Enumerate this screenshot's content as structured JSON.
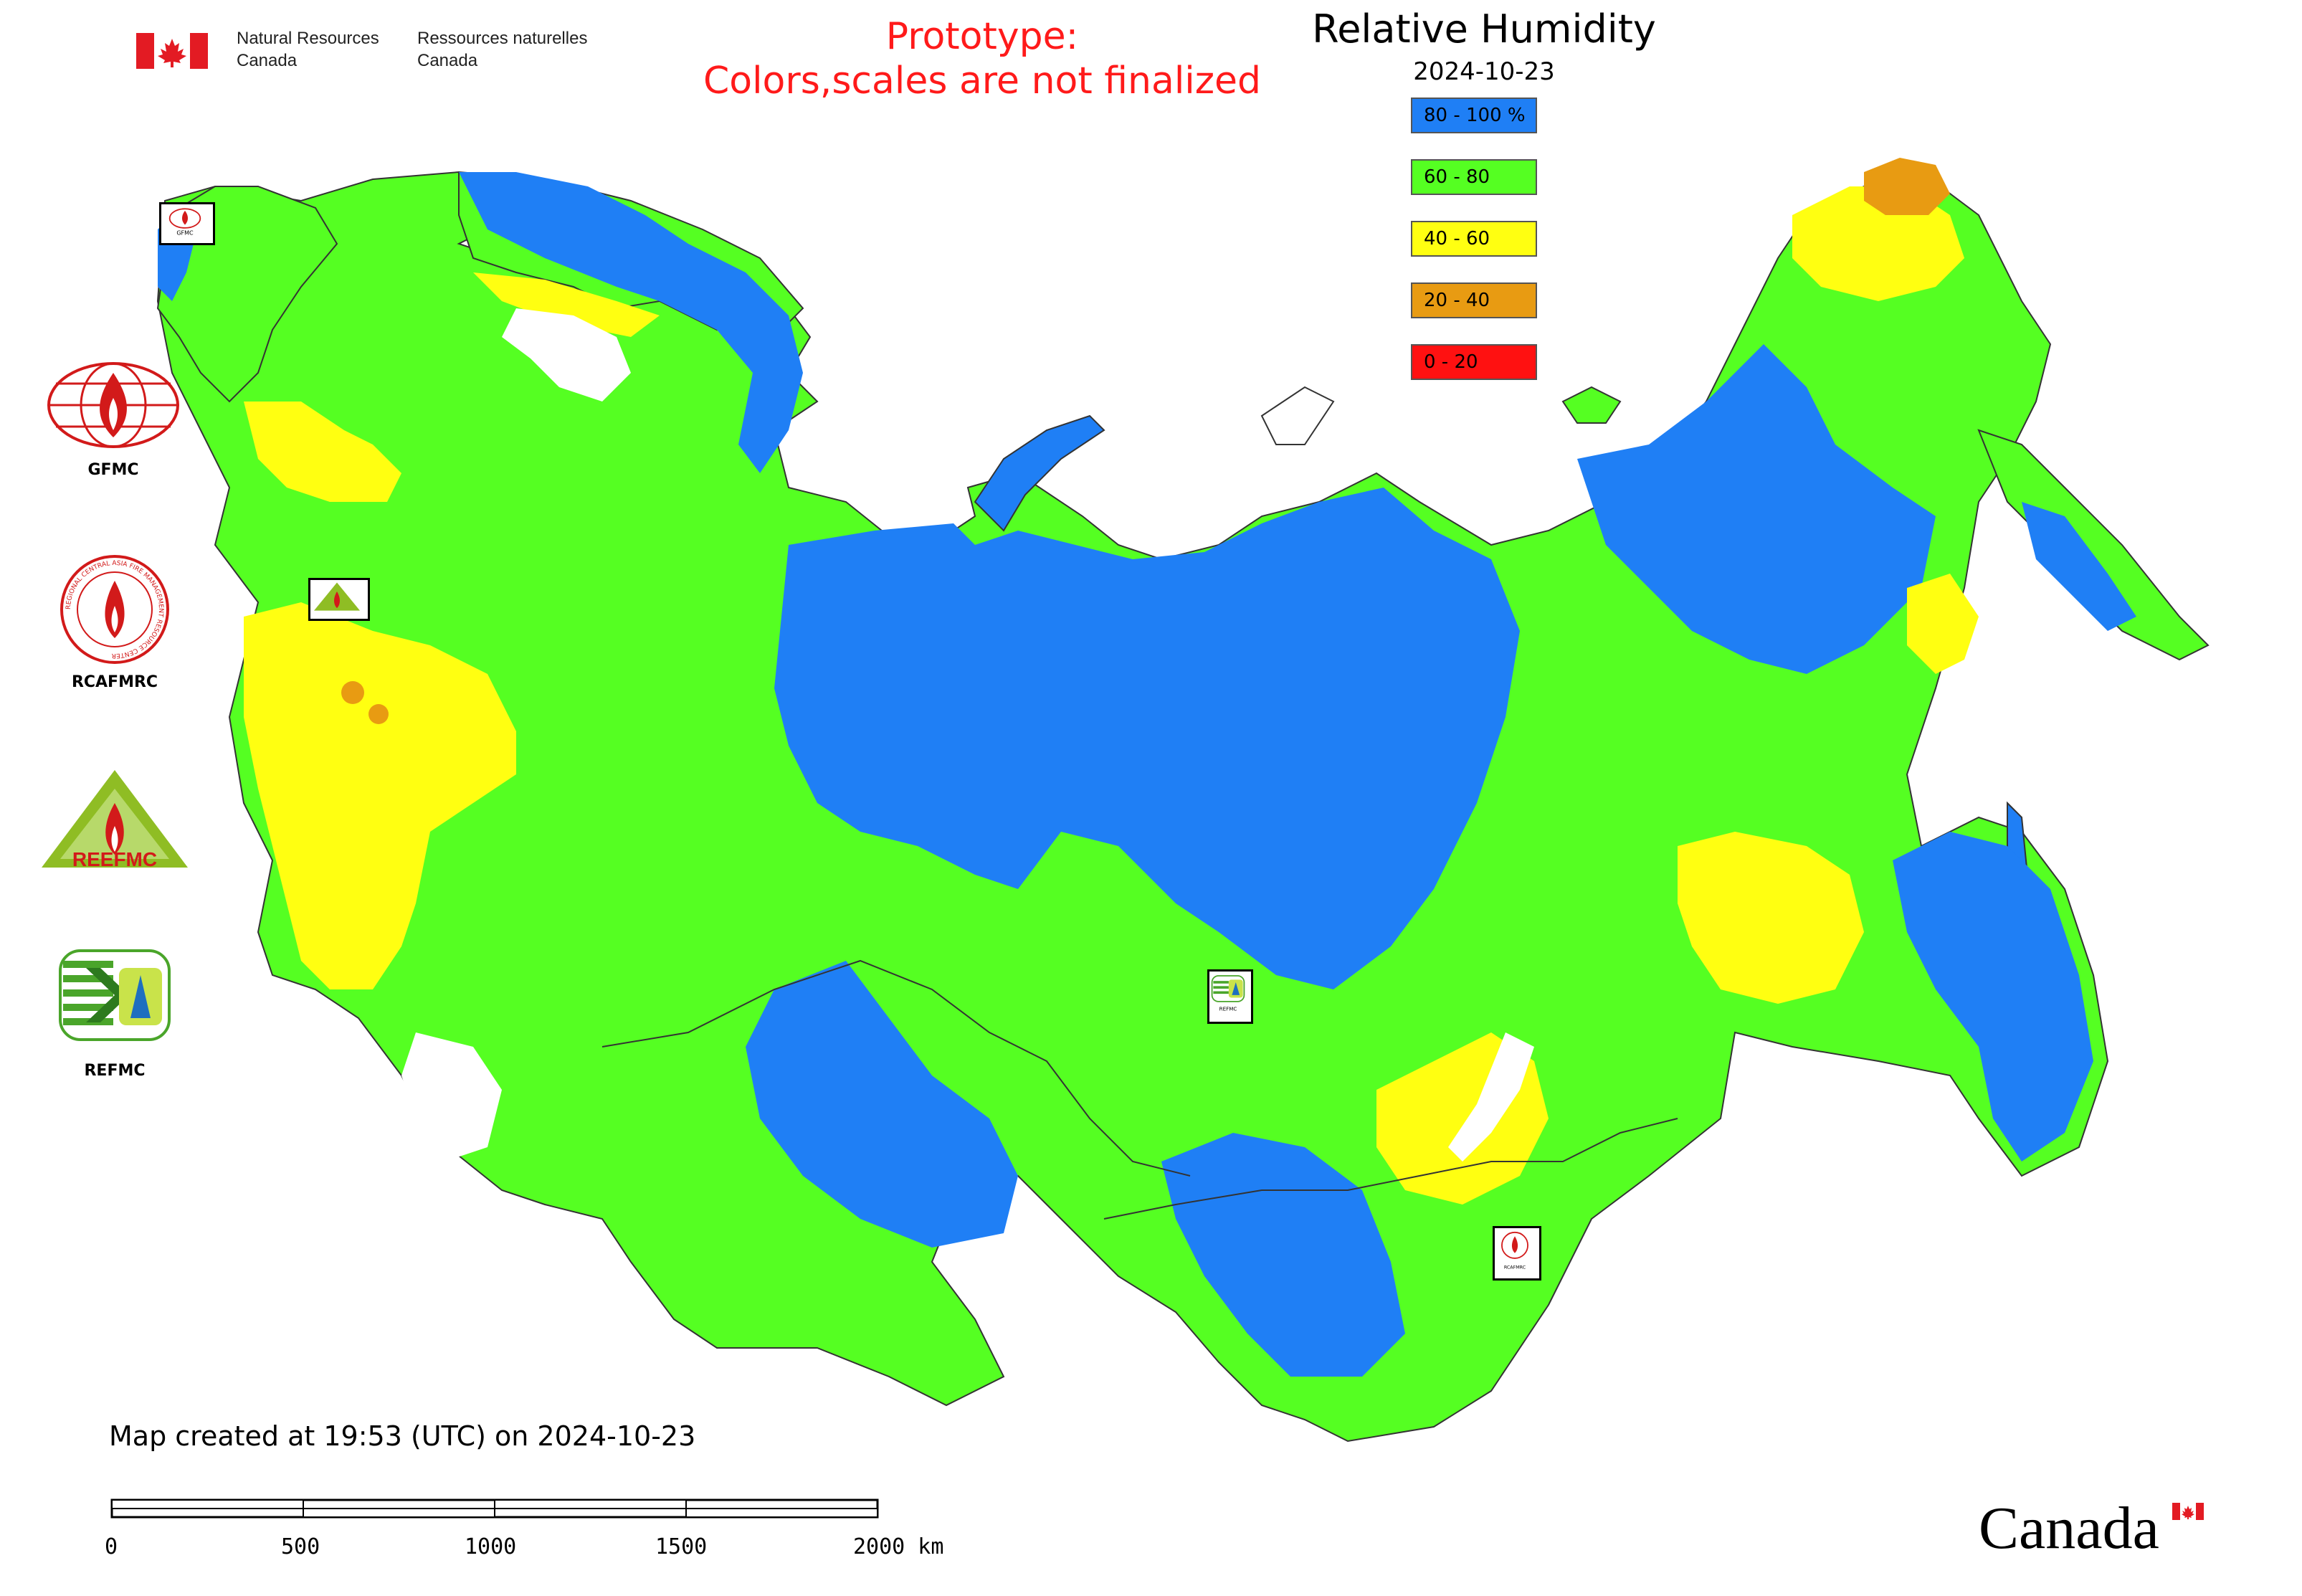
{
  "header": {
    "org_en_line1": "Natural Resources",
    "org_en_line2": "Canada",
    "org_fr_line1": "Ressources naturelles",
    "org_fr_line2": "Canada",
    "prototype_line1": "Prototype:",
    "prototype_line2": "Colors,scales are not finalized",
    "title": "Relative Humidity",
    "date": "2024-10-23"
  },
  "legend": [
    {
      "label": "80 - 100 %",
      "color": "#1f7ff5"
    },
    {
      "label": "60 - 80",
      "color": "#55ff22"
    },
    {
      "label": "40 - 60",
      "color": "#ffff11"
    },
    {
      "label": "20 - 40",
      "color": "#e89b12"
    },
    {
      "label": "0 - 20",
      "color": "#ff1111"
    }
  ],
  "logos": [
    {
      "name": "GFMC",
      "label": "GFMC"
    },
    {
      "name": "RCAFMRC",
      "label": "RCAFMRC",
      "ring_text": "REGIONAL CENTRAL ASIA FIRE MANAGEMENT RESOURCE CENTER"
    },
    {
      "name": "REEFMC",
      "label": "REEFMC",
      "mark_text": "REEFMC"
    },
    {
      "name": "REFMC",
      "label": "REFMC"
    }
  ],
  "map_markers": [
    {
      "name": "gfmc-marker",
      "label": "GFMC"
    },
    {
      "name": "reefmc-marker",
      "label": "REEFMC"
    },
    {
      "name": "refmc-marker",
      "label": "REFMC"
    },
    {
      "name": "rcafmrc-marker",
      "label": "RCAFMRC"
    }
  ],
  "footer": {
    "created": "Map created at 19:53 (UTC) on 2024-10-23",
    "scale_labels": [
      "0",
      "500",
      "1000",
      "1500",
      "2000 km"
    ],
    "wordmark": "Canada"
  },
  "colors": {
    "high": "#1f7ff5",
    "medium_high": "#55ff22",
    "medium": "#ffff11",
    "low": "#e89b12",
    "very_low": "#ff1111",
    "prototype_text": "#ff1a1a"
  }
}
